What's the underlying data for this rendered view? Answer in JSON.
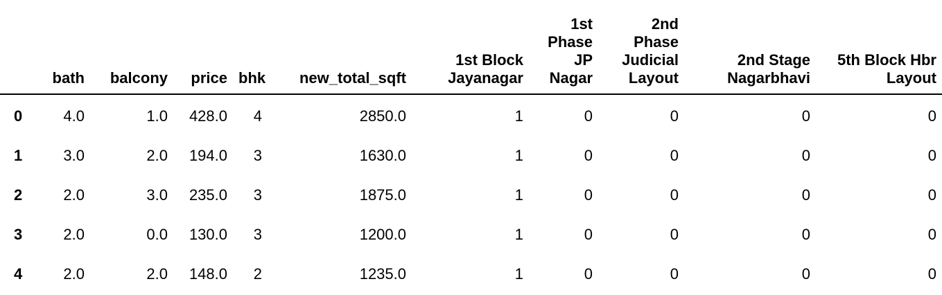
{
  "table": {
    "index_header": "",
    "columns": [
      "bath",
      "balcony",
      "price",
      "bhk",
      "new_total_sqft",
      "1st Block Jayanagar",
      "1st Phase JP Nagar",
      "2nd Phase Judicial Layout",
      "2nd Stage Nagarbhavi",
      "5th Block Hbr Layout"
    ],
    "rows": [
      {
        "index": "0",
        "cells": [
          "4.0",
          "1.0",
          "428.0",
          "4",
          "2850.0",
          "1",
          "0",
          "0",
          "0",
          "0"
        ]
      },
      {
        "index": "1",
        "cells": [
          "3.0",
          "2.0",
          "194.0",
          "3",
          "1630.0",
          "1",
          "0",
          "0",
          "0",
          "0"
        ]
      },
      {
        "index": "2",
        "cells": [
          "2.0",
          "3.0",
          "235.0",
          "3",
          "1875.0",
          "1",
          "0",
          "0",
          "0",
          "0"
        ]
      },
      {
        "index": "3",
        "cells": [
          "2.0",
          "0.0",
          "130.0",
          "3",
          "1200.0",
          "1",
          "0",
          "0",
          "0",
          "0"
        ]
      },
      {
        "index": "4",
        "cells": [
          "2.0",
          "2.0",
          "148.0",
          "2",
          "1235.0",
          "1",
          "0",
          "0",
          "0",
          "0"
        ]
      }
    ]
  }
}
